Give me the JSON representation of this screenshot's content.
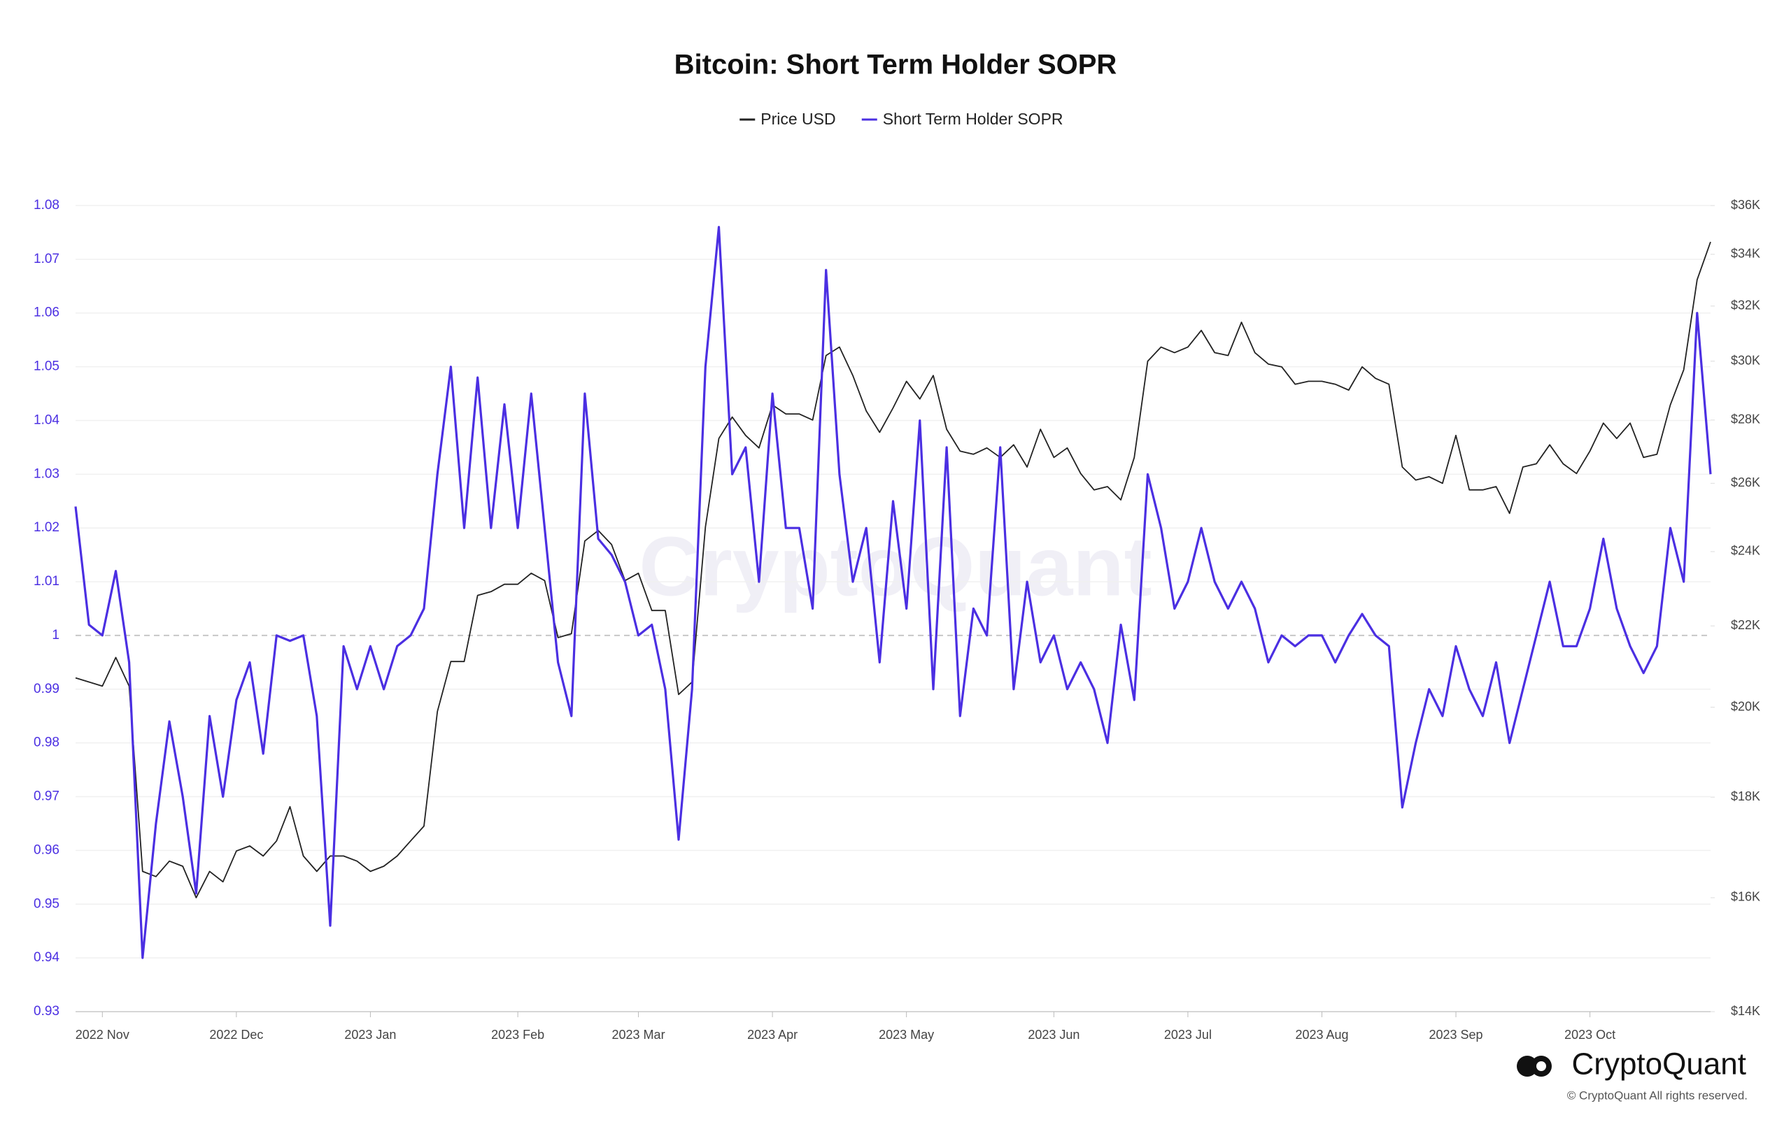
{
  "chart_data": {
    "type": "line",
    "title": "Bitcoin: Short Term Holder SOPR",
    "watermark": "CryptoQuant",
    "logo_text": "CryptoQuant",
    "copyright": "© CryptoQuant All rights reserved.",
    "categories": [
      null,
      null,
      "2022 Nov",
      null,
      null,
      null,
      null,
      null,
      null,
      null,
      null,
      null,
      "2022 Dec",
      null,
      null,
      null,
      null,
      null,
      null,
      null,
      null,
      null,
      "2023 Jan",
      null,
      null,
      null,
      null,
      null,
      null,
      null,
      null,
      null,
      null,
      "2023 Feb",
      null,
      null,
      null,
      null,
      null,
      null,
      null,
      null,
      "2023 Mar",
      null,
      null,
      null,
      null,
      null,
      null,
      null,
      null,
      null,
      "2023 Apr",
      null,
      null,
      null,
      null,
      null,
      null,
      null,
      null,
      null,
      "2023 May",
      null,
      null,
      null,
      null,
      null,
      null,
      null,
      null,
      null,
      null,
      "2023 Jun",
      null,
      null,
      null,
      null,
      null,
      null,
      null,
      null,
      null,
      "2023 Jul",
      null,
      null,
      null,
      null,
      null,
      null,
      null,
      null,
      null,
      "2023 Aug",
      null,
      null,
      null,
      null,
      null,
      null,
      null,
      null,
      null,
      "2023 Sep",
      null,
      null,
      null,
      null,
      null,
      null,
      null,
      null,
      null,
      "2023 Oct",
      null,
      null,
      null,
      null,
      null,
      null,
      null,
      null,
      null
    ],
    "series": [
      {
        "name": "Price USD",
        "color": "#222222",
        "axis": "y2",
        "values": [
          20700,
          20600,
          20500,
          21200,
          20500,
          16500,
          16400,
          16700,
          16600,
          16000,
          16500,
          16300,
          16900,
          17000,
          16800,
          17100,
          17800,
          16800,
          16500,
          16800,
          16800,
          16700,
          16500,
          16600,
          16800,
          17100,
          17400,
          19900,
          21100,
          21100,
          22800,
          22900,
          23100,
          23100,
          23400,
          23200,
          21700,
          21800,
          24300,
          24600,
          24200,
          23200,
          23400,
          22400,
          22400,
          20300,
          20600,
          24700,
          27400,
          28100,
          27500,
          27100,
          28500,
          28200,
          28200,
          28000,
          30200,
          30500,
          29500,
          28300,
          27600,
          28400,
          29300,
          28700,
          29500,
          27700,
          27000,
          26900,
          27100,
          26800,
          27200,
          26500,
          27700,
          26800,
          27100,
          26300,
          25800,
          25900,
          25500,
          26800,
          30000,
          30500,
          30300,
          30500,
          31100,
          30300,
          30200,
          31400,
          30300,
          29900,
          29800,
          29200,
          29300,
          29300,
          29200,
          29000,
          29800,
          29400,
          29200,
          26500,
          26100,
          26200,
          26000,
          27500,
          25800,
          25800,
          25900,
          25100,
          26500,
          26600,
          27200,
          26600,
          26300,
          27000,
          27900,
          27400,
          27900,
          26800,
          26900,
          28500,
          29700,
          33000,
          34500
        ]
      },
      {
        "name": "Short Term Holder SOPR",
        "color": "#4b2fe2",
        "values": [
          1.024,
          1.002,
          1.0,
          1.012,
          0.995,
          0.94,
          0.965,
          0.984,
          0.97,
          0.952,
          0.985,
          0.97,
          0.988,
          0.995,
          0.978,
          1.0,
          0.999,
          1.0,
          0.985,
          0.946,
          0.998,
          0.99,
          0.998,
          0.99,
          0.998,
          1.0,
          1.005,
          1.03,
          1.05,
          1.02,
          1.048,
          1.02,
          1.043,
          1.02,
          1.045,
          1.02,
          0.995,
          0.985,
          1.045,
          1.018,
          1.015,
          1.01,
          1.0,
          1.002,
          0.99,
          0.962,
          0.99,
          1.05,
          1.076,
          1.03,
          1.035,
          1.01,
          1.045,
          1.02,
          1.02,
          1.005,
          1.068,
          1.03,
          1.01,
          1.02,
          0.995,
          1.025,
          1.005,
          1.04,
          0.99,
          1.035,
          0.985,
          1.005,
          1.0,
          1.035,
          0.99,
          1.01,
          0.995,
          1.0,
          0.99,
          0.995,
          0.99,
          0.98,
          1.002,
          0.988,
          1.03,
          1.02,
          1.005,
          1.01,
          1.02,
          1.01,
          1.005,
          1.01,
          1.005,
          0.995,
          1.0,
          0.998,
          1.0,
          1.0,
          0.995,
          1.0,
          1.004,
          1.0,
          0.998,
          0.968,
          0.98,
          0.99,
          0.985,
          0.998,
          0.99,
          0.985,
          0.995,
          0.98,
          0.99,
          1.0,
          1.01,
          0.998,
          0.998,
          1.005,
          1.018,
          1.005,
          0.998,
          0.993,
          0.998,
          1.02,
          1.01,
          1.06,
          1.03
        ]
      }
    ],
    "ylim": [
      0.93,
      1.08
    ],
    "yticks": [
      0.93,
      0.94,
      0.95,
      0.96,
      0.97,
      0.98,
      0.99,
      1,
      1.01,
      1.02,
      1.03,
      1.04,
      1.05,
      1.06,
      1.07,
      1.08
    ],
    "y2lim": [
      14000,
      36000
    ],
    "y2log": true,
    "y2ticks": [
      {
        "value": 14000,
        "label": "$14K"
      },
      {
        "value": 16000,
        "label": "$16K"
      },
      {
        "value": 18000,
        "label": "$18K"
      },
      {
        "value": 20000,
        "label": "$20K"
      },
      {
        "value": 22000,
        "label": "$22K"
      },
      {
        "value": 24000,
        "label": "$24K"
      },
      {
        "value": 26000,
        "label": "$26K"
      },
      {
        "value": 28000,
        "label": "$28K"
      },
      {
        "value": 30000,
        "label": "$30K"
      },
      {
        "value": 32000,
        "label": "$32K"
      },
      {
        "value": 34000,
        "label": "$34K"
      },
      {
        "value": 36000,
        "label": "$36K"
      }
    ],
    "baseline": 1,
    "grid": true,
    "legend": "top"
  }
}
